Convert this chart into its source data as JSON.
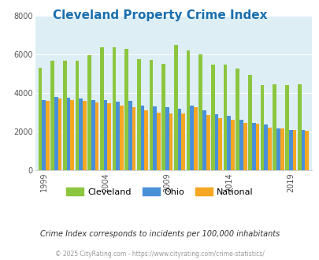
{
  "title": "Cleveland Property Crime Index",
  "title_color": "#1a6faf",
  "subtitle": "Crime Index corresponds to incidents per 100,000 inhabitants",
  "footer": "© 2025 CityRating.com - https://www.cityrating.com/crime-statistics/",
  "years": [
    1999,
    2000,
    2001,
    2002,
    2003,
    2004,
    2005,
    2006,
    2007,
    2008,
    2009,
    2010,
    2011,
    2012,
    2013,
    2014,
    2015,
    2016,
    2017,
    2018,
    2019,
    2020
  ],
  "cleveland": [
    5300,
    5650,
    5650,
    5650,
    5950,
    6350,
    6350,
    6300,
    5750,
    5700,
    5500,
    6500,
    6200,
    6000,
    5450,
    5450,
    5250,
    4950,
    4400,
    4450,
    4400,
    4450
  ],
  "ohio": [
    3650,
    3800,
    3750,
    3700,
    3650,
    3650,
    3550,
    3600,
    3350,
    3300,
    3250,
    3200,
    3350,
    3100,
    2900,
    2800,
    2600,
    2450,
    2350,
    2150,
    2100,
    2100
  ],
  "national": [
    3600,
    3700,
    3650,
    3600,
    3500,
    3450,
    3350,
    3250,
    3100,
    3000,
    2950,
    2950,
    3250,
    2850,
    2700,
    2600,
    2450,
    2400,
    2200,
    2150,
    2100,
    2050
  ],
  "cleveland_color": "#8cc63f",
  "ohio_color": "#4a90d9",
  "national_color": "#f5a623",
  "bg_color": "#ddeef5",
  "ylim": [
    0,
    8000
  ],
  "yticks": [
    0,
    2000,
    4000,
    6000,
    8000
  ],
  "grid_color": "#ffffff",
  "tick_label_years": [
    1999,
    2004,
    2009,
    2014,
    2019
  ]
}
